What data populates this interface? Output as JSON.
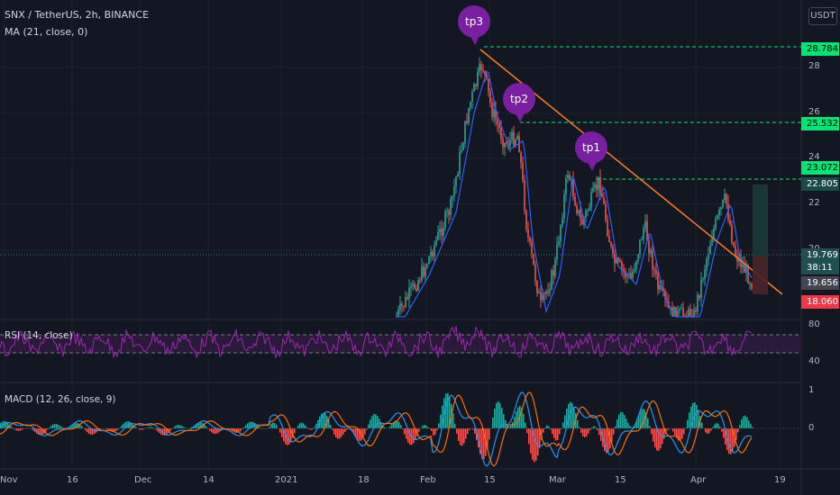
{
  "header": {
    "symbol_line": "SNX / TetherUS, 2h, BINANCE",
    "ma_line": "MA (21, close, 0)",
    "currency": "USDT"
  },
  "indicators": {
    "rsi_label": "RSI (14, close)",
    "macd_label": "MACD (12, 26, close, 9)"
  },
  "callouts": [
    {
      "label": "tp3"
    },
    {
      "label": "tp2"
    },
    {
      "label": "tp1"
    }
  ],
  "price_axis": {
    "ticks": [
      "28",
      "26",
      "24",
      "22",
      "20"
    ],
    "tags": [
      {
        "text": "28.784",
        "color": "#00e676",
        "text_color": "#000000"
      },
      {
        "text": "25.532",
        "color": "#00e676",
        "text_color": "#000000"
      },
      {
        "text": "23.072",
        "color": "#00e676",
        "text_color": "#000000"
      },
      {
        "text": "22.805",
        "color": "#1b4a4a",
        "text_color": "#ffffff"
      },
      {
        "text": "19.769",
        "color": "#1f4f4f",
        "text_color": "#ffffff"
      },
      {
        "text": "38:11",
        "color": "#1f4f4f",
        "text_color": "#ffffff"
      },
      {
        "text": "19.656",
        "color": "#434651",
        "text_color": "#ffffff"
      },
      {
        "text": "18.060",
        "color": "#f23645",
        "text_color": "#ffffff"
      }
    ]
  },
  "rsi_axis": {
    "ticks": [
      "80",
      "40"
    ]
  },
  "macd_axis": {
    "ticks": [
      "1",
      "0"
    ]
  },
  "time_axis": {
    "ticks": [
      "Nov",
      "16",
      "Dec",
      "14",
      "2021",
      "18",
      "Feb",
      "15",
      "Mar",
      "15",
      "Apr",
      "19"
    ]
  },
  "colors": {
    "background": "#131722",
    "up": "#26a69a",
    "down": "#ef5350",
    "ma": "#2962ff",
    "trendline": "#ff7a25",
    "target_line": "#00e676",
    "rsi": "#9c27b0",
    "macd": "#2196f3",
    "signal": "#ff6d00",
    "callout": "#7b1fa2"
  }
}
